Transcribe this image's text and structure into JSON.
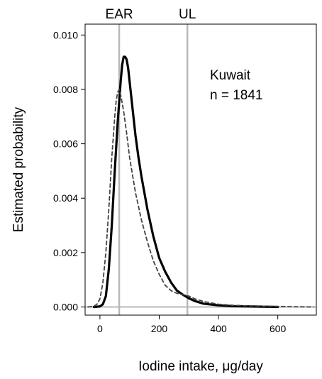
{
  "chart_data": {
    "type": "line",
    "title": "",
    "xlabel": "Iodine intake, μg/day",
    "ylabel": "Estimated probability",
    "xlim": [
      -50,
      730
    ],
    "ylim": [
      -0.0003,
      0.0104
    ],
    "x_ticks": [
      0,
      200,
      400,
      600
    ],
    "x_tick_labels": [
      "0",
      "200",
      "400",
      "600"
    ],
    "y_ticks": [
      0.0,
      0.002,
      0.004,
      0.006,
      0.008,
      0.01
    ],
    "y_tick_labels": [
      "0.000",
      "0.002",
      "0.004",
      "0.006",
      "0.008",
      "0.010"
    ],
    "grid": false,
    "reference_lines": [
      {
        "label": "EAR",
        "x": 65,
        "color": "#b8b8b8"
      },
      {
        "label": "UL",
        "x": 295,
        "color": "#b8b8b8"
      }
    ],
    "annotations": [
      {
        "text": "Kuwait"
      },
      {
        "text": "n = 1841"
      }
    ],
    "series": [
      {
        "style": "solid",
        "color": "#000000",
        "x": [
          -20,
          0,
          10,
          20,
          30,
          40,
          50,
          60,
          70,
          75,
          80,
          85,
          90,
          95,
          100,
          110,
          120,
          130,
          140,
          150,
          160,
          180,
          200,
          220,
          240,
          260,
          280,
          300,
          320,
          350,
          400,
          450,
          500,
          550,
          600
        ],
        "y": [
          0.0,
          2e-05,
          0.0001,
          0.0004,
          0.0014,
          0.003,
          0.005,
          0.0068,
          0.0083,
          0.0089,
          0.0092,
          0.0092,
          0.0091,
          0.0088,
          0.0083,
          0.0073,
          0.0063,
          0.0055,
          0.0048,
          0.0042,
          0.0036,
          0.0026,
          0.0018,
          0.0013,
          0.0009,
          0.0006,
          0.00045,
          0.00032,
          0.00022,
          0.00012,
          6e-05,
          3e-05,
          2e-05,
          1e-05,
          0.0
        ]
      },
      {
        "style": "dashed",
        "color": "#444444",
        "x": [
          -40,
          -20,
          -10,
          0,
          10,
          20,
          30,
          40,
          50,
          55,
          60,
          65,
          70,
          80,
          90,
          100,
          120,
          140,
          160,
          180,
          200,
          220,
          240,
          260,
          280,
          300,
          320,
          350,
          400,
          450,
          500,
          550,
          600,
          650,
          720
        ],
        "y": [
          0.0,
          3e-05,
          0.0001,
          0.0003,
          0.0009,
          0.002,
          0.0036,
          0.0055,
          0.007,
          0.0076,
          0.0079,
          0.008,
          0.0078,
          0.0072,
          0.0064,
          0.0055,
          0.0042,
          0.0032,
          0.0024,
          0.0017,
          0.0012,
          0.0008,
          0.0006,
          0.0005,
          0.00045,
          0.0004,
          0.0003,
          0.0002,
          0.0001,
          6e-05,
          4e-05,
          3e-05,
          2e-05,
          1e-05,
          0.0
        ]
      }
    ]
  }
}
